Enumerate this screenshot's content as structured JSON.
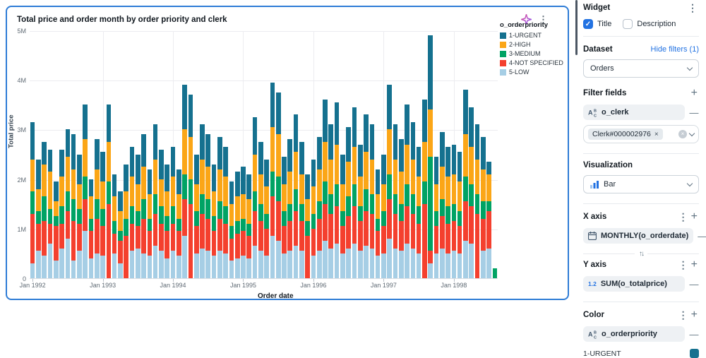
{
  "card": {
    "title": "Total price and order month by order priority and clerk"
  },
  "chart_data": {
    "type": "bar",
    "stacked": true,
    "title": "Total price and order month by order priority and clerk",
    "xlabel": "Order date",
    "ylabel": "Total price",
    "unit": "millions",
    "ylim_millions": [
      0,
      5
    ],
    "ytick_labels": [
      "0",
      "1M",
      "2M",
      "3M",
      "4M",
      "5M"
    ],
    "xticks": [
      {
        "index": 0,
        "label": "Jan 1992"
      },
      {
        "index": 12,
        "label": "Jan 1993"
      },
      {
        "index": 24,
        "label": "Jan 1994"
      },
      {
        "index": 36,
        "label": "Jan 1995"
      },
      {
        "index": 48,
        "label": "Jan 1996"
      },
      {
        "index": 60,
        "label": "Jan 1997"
      },
      {
        "index": 72,
        "label": "Jan 1998"
      }
    ],
    "legend_title": "o_orderpriority",
    "legend_position": "top-right",
    "grid": true,
    "categories": [
      "1992-01",
      "1992-02",
      "1992-03",
      "1992-04",
      "1992-05",
      "1992-06",
      "1992-07",
      "1992-08",
      "1992-09",
      "1992-10",
      "1992-11",
      "1992-12",
      "1993-01",
      "1993-02",
      "1993-03",
      "1993-04",
      "1993-05",
      "1993-06",
      "1993-07",
      "1993-08",
      "1993-09",
      "1993-10",
      "1993-11",
      "1993-12",
      "1994-01",
      "1994-02",
      "1994-03",
      "1994-04",
      "1994-05",
      "1994-06",
      "1994-07",
      "1994-08",
      "1994-09",
      "1994-10",
      "1994-11",
      "1994-12",
      "1995-01",
      "1995-02",
      "1995-03",
      "1995-04",
      "1995-05",
      "1995-06",
      "1995-07",
      "1995-08",
      "1995-09",
      "1995-10",
      "1995-11",
      "1995-12",
      "1996-01",
      "1996-02",
      "1996-03",
      "1996-04",
      "1996-05",
      "1996-06",
      "1996-07",
      "1996-08",
      "1996-09",
      "1996-10",
      "1996-11",
      "1996-12",
      "1997-01",
      "1997-02",
      "1997-03",
      "1997-04",
      "1997-05",
      "1997-06",
      "1997-07",
      "1997-08",
      "1997-09",
      "1997-10",
      "1997-11",
      "1997-12",
      "1998-01",
      "1998-02",
      "1998-03",
      "1998-04",
      "1998-05",
      "1998-06",
      "1998-07",
      "1998-08"
    ],
    "stack_order_bottom_to_top": [
      "5-LOW",
      "4-NOT SPECIFIED",
      "3-MEDIUM",
      "2-HIGH",
      "1-URGENT"
    ],
    "series": [
      {
        "name": "1-URGENT",
        "color": "#15718F",
        "values_millions": [
          0.75,
          0.6,
          0.45,
          0.45,
          0.4,
          0.55,
          0.55,
          0.7,
          0.6,
          0.7,
          0.35,
          0.6,
          0.6,
          0.75,
          0.45,
          0.4,
          0.55,
          0.6,
          0.6,
          0.65,
          0.5,
          0.7,
          0.6,
          0.55,
          0.6,
          0.5,
          0.9,
          0.85,
          0.6,
          0.7,
          0.65,
          0.55,
          0.65,
          0.6,
          0.45,
          0.5,
          0.55,
          0.5,
          0.75,
          0.65,
          0.55,
          0.9,
          0.85,
          0.55,
          0.65,
          0.75,
          0.65,
          0.5,
          0.55,
          0.65,
          0.85,
          0.7,
          0.85,
          0.6,
          0.7,
          0.8,
          0.65,
          0.75,
          0.7,
          0.5,
          0.6,
          0.9,
          0.7,
          0.65,
          0.8,
          0.75,
          0.6,
          0.85,
          1.5,
          0.55,
          0.7,
          0.6,
          0.6,
          0.6,
          0.9,
          0.8,
          0.7,
          0.65,
          0.25,
          0.0
        ]
      },
      {
        "name": "2-HIGH",
        "color": "#FBA617",
        "values_millions": [
          0.65,
          0.45,
          0.65,
          0.75,
          0.3,
          0.6,
          0.7,
          0.6,
          0.5,
          0.75,
          0.45,
          0.6,
          0.55,
          0.8,
          0.5,
          0.4,
          0.55,
          0.6,
          0.55,
          0.65,
          0.5,
          0.7,
          0.55,
          0.5,
          0.6,
          0.5,
          0.9,
          0.85,
          0.55,
          0.7,
          0.65,
          0.5,
          0.65,
          0.6,
          0.45,
          0.5,
          0.5,
          0.5,
          0.75,
          0.6,
          0.55,
          0.9,
          0.85,
          0.55,
          0.65,
          0.75,
          0.6,
          0.45,
          0.55,
          0.65,
          0.8,
          0.7,
          0.8,
          0.55,
          0.7,
          0.75,
          0.6,
          0.75,
          0.7,
          0.5,
          0.55,
          0.9,
          0.7,
          0.65,
          0.8,
          0.7,
          0.6,
          0.8,
          0.95,
          0.55,
          0.65,
          0.6,
          0.6,
          0.6,
          0.85,
          0.75,
          0.7,
          0.65,
          0.55,
          0.0
        ]
      },
      {
        "name": "3-MEDIUM",
        "color": "#00A364",
        "values_millions": [
          0.45,
          0.25,
          0.5,
          0.3,
          0.2,
          0.35,
          0.4,
          0.45,
          0.3,
          0.45,
          0.25,
          0.4,
          0.35,
          0.45,
          0.25,
          0.2,
          0.35,
          0.35,
          0.3,
          0.4,
          0.25,
          0.4,
          0.35,
          0.3,
          0.35,
          0.25,
          0.5,
          0.5,
          0.3,
          0.4,
          0.4,
          0.3,
          0.35,
          0.35,
          0.25,
          0.25,
          0.25,
          0.25,
          0.4,
          0.35,
          0.3,
          0.5,
          0.5,
          0.3,
          0.35,
          0.45,
          0.35,
          0.3,
          0.3,
          0.35,
          0.45,
          0.4,
          0.45,
          0.3,
          0.4,
          0.45,
          0.3,
          0.45,
          0.4,
          0.25,
          0.3,
          0.5,
          0.4,
          0.35,
          0.45,
          0.4,
          0.35,
          0.45,
          1.9,
          0.3,
          0.35,
          0.35,
          0.35,
          0.3,
          0.5,
          0.45,
          0.4,
          0.35,
          0.2,
          0.2
        ]
      },
      {
        "name": "4-NOT SPECIFIED",
        "color": "#F4402E",
        "values_millions": [
          1.0,
          0.55,
          0.7,
          0.4,
          0.7,
          0.5,
          0.55,
          0.8,
          0.55,
          0.65,
          0.55,
          0.7,
          0.6,
          1.5,
          0.4,
          0.45,
          0.85,
          0.55,
          0.45,
          0.7,
          0.5,
          0.65,
          0.55,
          0.55,
          0.55,
          0.5,
          0.75,
          1.5,
          0.55,
          0.7,
          0.65,
          0.5,
          0.65,
          0.6,
          0.45,
          0.5,
          0.5,
          0.45,
          0.7,
          0.6,
          0.55,
          0.8,
          0.8,
          0.55,
          0.6,
          0.7,
          0.6,
          0.85,
          0.55,
          0.65,
          0.75,
          0.7,
          0.75,
          0.55,
          0.65,
          0.75,
          0.6,
          0.7,
          0.7,
          0.5,
          0.55,
          0.8,
          0.7,
          0.6,
          0.75,
          0.7,
          0.6,
          1.5,
          0.25,
          0.55,
          0.65,
          0.6,
          0.6,
          0.55,
          0.8,
          0.75,
          1.3,
          0.65,
          0.75,
          0.0
        ]
      },
      {
        "name": "5-LOW",
        "color": "#A6CEE5",
        "values_millions": [
          0.3,
          0.55,
          0.45,
          0.7,
          0.35,
          0.6,
          0.8,
          0.35,
          0.55,
          0.95,
          0.4,
          0.5,
          0.45,
          0.0,
          0.5,
          0.3,
          0.0,
          0.55,
          0.6,
          0.5,
          0.45,
          0.65,
          0.55,
          0.4,
          0.55,
          0.45,
          0.85,
          0.0,
          0.5,
          0.6,
          0.55,
          0.45,
          0.55,
          0.5,
          0.35,
          0.4,
          0.45,
          0.4,
          0.65,
          0.55,
          0.45,
          0.85,
          0.75,
          0.5,
          0.55,
          0.65,
          0.55,
          0.0,
          0.45,
          0.55,
          0.75,
          0.6,
          0.7,
          0.5,
          0.6,
          0.7,
          0.55,
          0.65,
          0.6,
          0.45,
          0.5,
          0.8,
          0.6,
          0.55,
          0.7,
          0.6,
          0.5,
          0.0,
          0.3,
          0.5,
          0.6,
          0.5,
          0.55,
          0.5,
          0.75,
          0.7,
          0.0,
          0.55,
          0.6,
          0.0
        ]
      }
    ]
  },
  "panel": {
    "header": "Widget",
    "checkboxes": {
      "title_label": "Title",
      "description_label": "Description"
    },
    "dataset": {
      "label": "Dataset",
      "hide_filters_link": "Hide filters (1)",
      "selected": "Orders"
    },
    "filter_fields": {
      "label": "Filter fields",
      "field_name": "o_clerk",
      "chip_value": "Clerk#000002976"
    },
    "visualization": {
      "label": "Visualization",
      "selected": "Bar"
    },
    "x_axis": {
      "label": "X axis",
      "field": "MONTHLY(o_orderdate)"
    },
    "y_axis": {
      "label": "Y axis",
      "field": "SUM(o_totalprice)"
    },
    "color": {
      "label": "Color",
      "field": "o_orderpriority",
      "first_value": "1-URGENT",
      "first_value_color": "#15718F"
    }
  },
  "colors": {
    "accent_blue": "#2272e2",
    "card_border": "#2e7cd6",
    "sparkle_pink": "#e0519b",
    "sparkle_violet": "#8b5cf6"
  }
}
